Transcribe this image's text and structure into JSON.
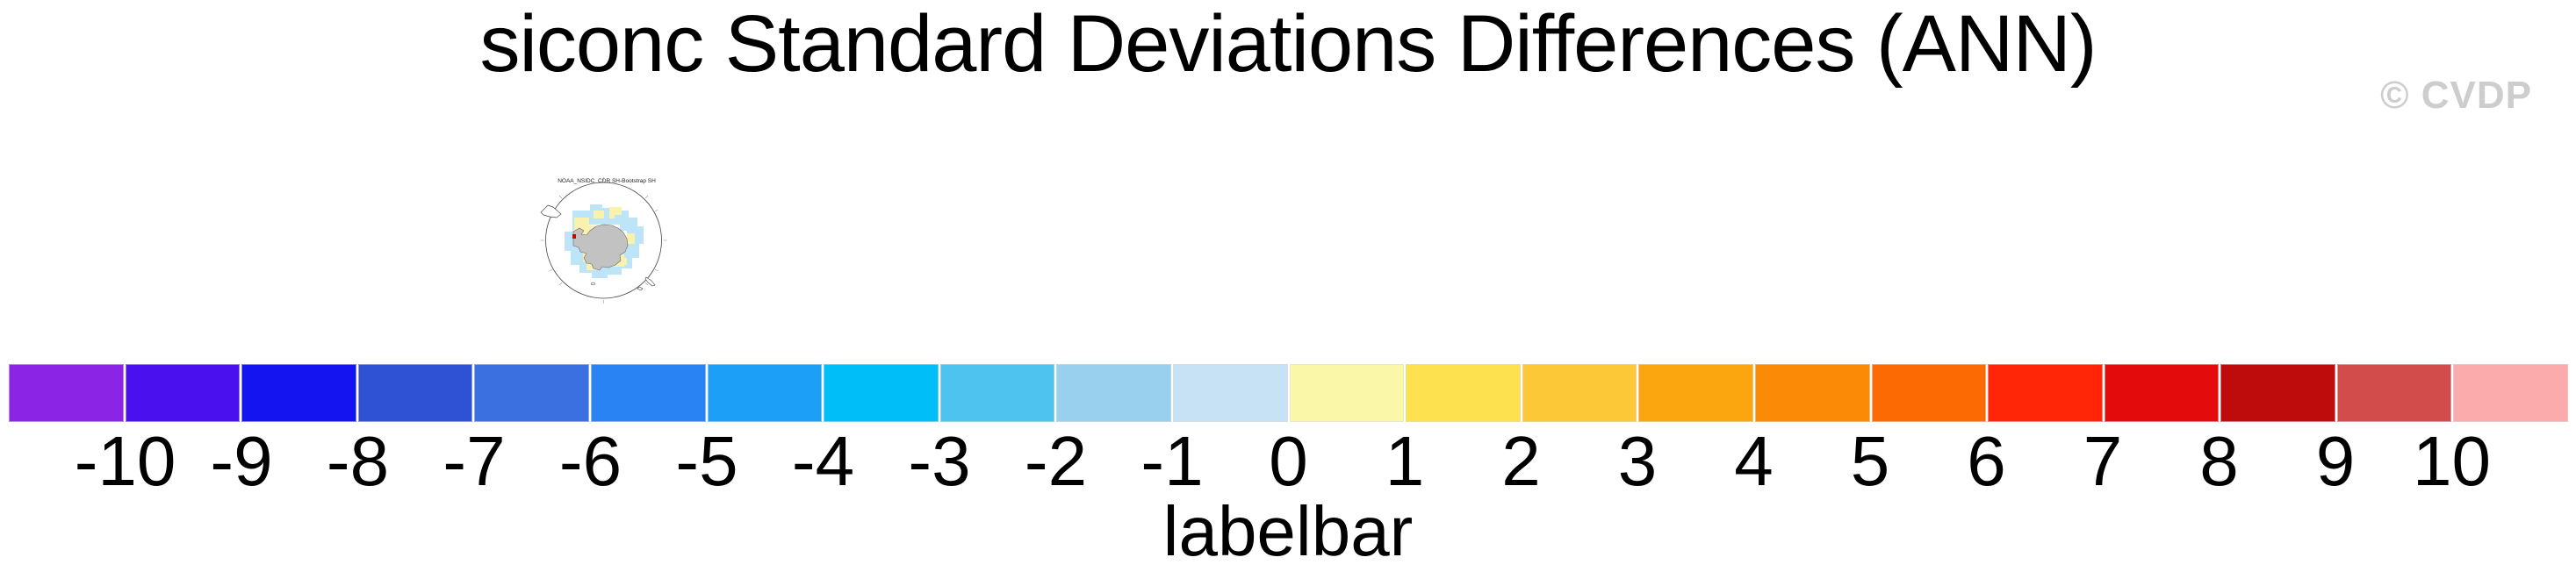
{
  "header": {
    "title": "siconc Standard Deviations Differences (ANN)",
    "watermark": "© CVDP"
  },
  "map_panel": {
    "title": "NOAA_NSIDC_CDR SH-Bootstrap SH"
  },
  "labelbar": {
    "caption": "labelbar",
    "tick_labels": [
      "-10",
      "-9",
      "-8",
      "-7",
      "-6",
      "-5",
      "-4",
      "-3",
      "-2",
      "-1",
      "0",
      "1",
      "2",
      "3",
      "4",
      "5",
      "6",
      "7",
      "8",
      "9",
      "10"
    ],
    "box_colors": [
      "#8B24E4",
      "#4A11EE",
      "#1414F0",
      "#2F51D3",
      "#3A70E0",
      "#2A83F2",
      "#1C9FF7",
      "#00BFF8",
      "#4EC3EF",
      "#98D0EE",
      "#C7E2F5",
      "#FBF7A9",
      "#FDE14E",
      "#FCC838",
      "#FCA60F",
      "#FB8B06",
      "#FC6A03",
      "#FF2506",
      "#E30B0B",
      "#BE0B0B",
      "#D24C4C",
      "#FBABAB"
    ]
  },
  "map_colors": {
    "ocean": "#FFFFFF",
    "sea_ice_low": "#BEE4F7",
    "sea_ice_mid": "#F9F2AE",
    "sea_ice_high": "#D40000",
    "land": "#C2C2C2",
    "outline": "#444444"
  },
  "chart_data": {
    "type": "heatmap",
    "title": "siconc Standard Deviations Differences (ANN)",
    "watermark": "© CVDP",
    "panels": [
      {
        "title": "NOAA_NSIDC_CDR SH-Bootstrap SH",
        "projection": "south polar stereographic",
        "region": "Antarctica / Southern Ocean",
        "note": "small thumbnail map of siconc standard-deviation differences around Antarctica; mostly pale blue and pale yellow anomalies with one small dark-red cell near the Antarctic Peninsula"
      }
    ],
    "colorbar": {
      "label": "labelbar",
      "levels": [
        -10,
        -9,
        -8,
        -7,
        -6,
        -5,
        -4,
        -3,
        -2,
        -1,
        0,
        1,
        2,
        3,
        4,
        5,
        6,
        7,
        8,
        9,
        10
      ],
      "colors": [
        "#8B24E4",
        "#4A11EE",
        "#1414F0",
        "#2F51D3",
        "#3A70E0",
        "#2A83F2",
        "#1C9FF7",
        "#00BFF8",
        "#4EC3EF",
        "#98D0EE",
        "#C7E2F5",
        "#FBF7A9",
        "#FDE14E",
        "#FCC838",
        "#FCA60F",
        "#FB8B06",
        "#FC6A03",
        "#FF2506",
        "#E30B0B",
        "#BE0B0B",
        "#D24C4C",
        "#FBABAB"
      ],
      "orientation": "horizontal",
      "legend_position": "bottom"
    }
  }
}
